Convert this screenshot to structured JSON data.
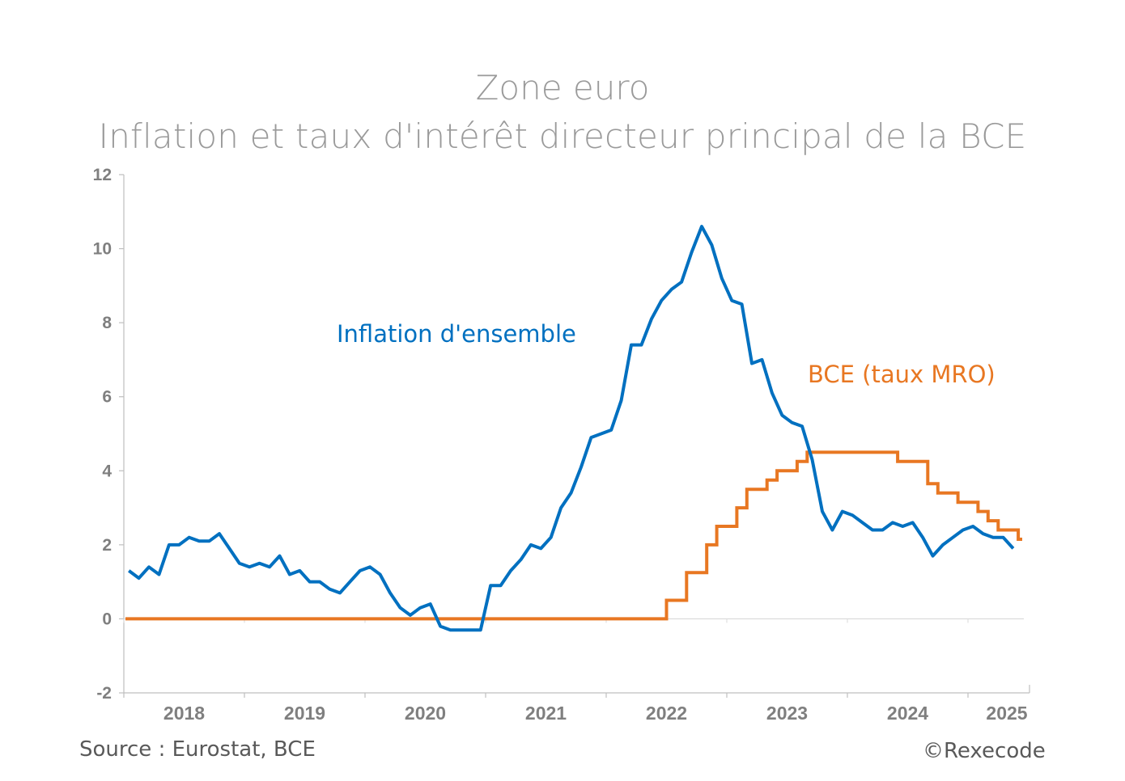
{
  "title": {
    "line1": "Zone euro",
    "line2": "Inflation et taux d'intérêt directeur principal de la BCE"
  },
  "labels": {
    "inflation": "Inflation d'ensemble",
    "bce": "BCE (taux MRO)"
  },
  "footer": {
    "source": "Source : Eurostat, BCE",
    "copyright": "©Rexecode"
  },
  "colors": {
    "inflation": "#0070c0",
    "bce": "#e87722",
    "axis": "#bfbfbf",
    "tick_text": "#7f7f7f",
    "title_text": "#9a9a9a"
  },
  "axis": {
    "y_ticks": [
      "12",
      "10",
      "8",
      "6",
      "4",
      "2",
      "0",
      "-2"
    ],
    "x_ticks": [
      "2018",
      "2019",
      "2020",
      "2021",
      "2022",
      "2023",
      "2024",
      "2025"
    ]
  },
  "chart_data": {
    "type": "line",
    "title": "Zone euro — Inflation et taux d'intérêt directeur principal de la BCE",
    "xlabel": "",
    "ylabel": "",
    "ylim": [
      -2,
      12
    ],
    "yticks": [
      -2,
      0,
      2,
      4,
      6,
      8,
      10,
      12
    ],
    "xticks": [
      "2018",
      "2019",
      "2020",
      "2021",
      "2022",
      "2023",
      "2024",
      "2025"
    ],
    "x_start": "2018-01",
    "frequency": "monthly",
    "grid": false,
    "legend": "inline labels",
    "series": [
      {
        "name": "Inflation d'ensemble",
        "color": "#0070c0",
        "values": [
          1.3,
          1.1,
          1.4,
          1.2,
          2.0,
          2.0,
          2.2,
          2.1,
          2.1,
          2.3,
          1.9,
          1.5,
          1.4,
          1.5,
          1.4,
          1.7,
          1.2,
          1.3,
          1.0,
          1.0,
          0.8,
          0.7,
          1.0,
          1.3,
          1.4,
          1.2,
          0.7,
          0.3,
          0.1,
          0.3,
          0.4,
          -0.2,
          -0.3,
          -0.3,
          -0.3,
          -0.3,
          0.9,
          0.9,
          1.3,
          1.6,
          2.0,
          1.9,
          2.2,
          3.0,
          3.4,
          4.1,
          4.9,
          5.0,
          5.1,
          5.9,
          7.4,
          7.4,
          8.1,
          8.6,
          8.9,
          9.1,
          9.9,
          10.6,
          10.1,
          9.2,
          8.6,
          8.5,
          6.9,
          7.0,
          6.1,
          5.5,
          5.3,
          5.2,
          4.3,
          2.9,
          2.4,
          2.9,
          2.8,
          2.6,
          2.4,
          2.4,
          2.6,
          2.5,
          2.6,
          2.2,
          1.7,
          2.0,
          2.2,
          2.4,
          2.5,
          2.3,
          2.2,
          2.2,
          1.9
        ]
      },
      {
        "name": "BCE (taux MRO)",
        "color": "#e87722",
        "step": true,
        "steps": [
          {
            "from": "2018-01",
            "value": 0.0
          },
          {
            "from": "2022-07",
            "value": 0.5
          },
          {
            "from": "2022-09",
            "value": 1.25
          },
          {
            "from": "2022-11",
            "value": 2.0
          },
          {
            "from": "2022-12",
            "value": 2.5
          },
          {
            "from": "2023-02",
            "value": 3.0
          },
          {
            "from": "2023-03",
            "value": 3.5
          },
          {
            "from": "2023-05",
            "value": 3.75
          },
          {
            "from": "2023-06",
            "value": 4.0
          },
          {
            "from": "2023-08",
            "value": 4.25
          },
          {
            "from": "2023-09",
            "value": 4.5
          },
          {
            "from": "2024-06",
            "value": 4.25
          },
          {
            "from": "2024-09",
            "value": 3.65
          },
          {
            "from": "2024-10",
            "value": 3.4
          },
          {
            "from": "2024-12",
            "value": 3.15
          },
          {
            "from": "2025-02",
            "value": 2.9
          },
          {
            "from": "2025-03",
            "value": 2.65
          },
          {
            "from": "2025-04",
            "value": 2.4
          },
          {
            "from": "2025-06",
            "value": 2.15
          }
        ],
        "end": "2025-06"
      }
    ]
  }
}
